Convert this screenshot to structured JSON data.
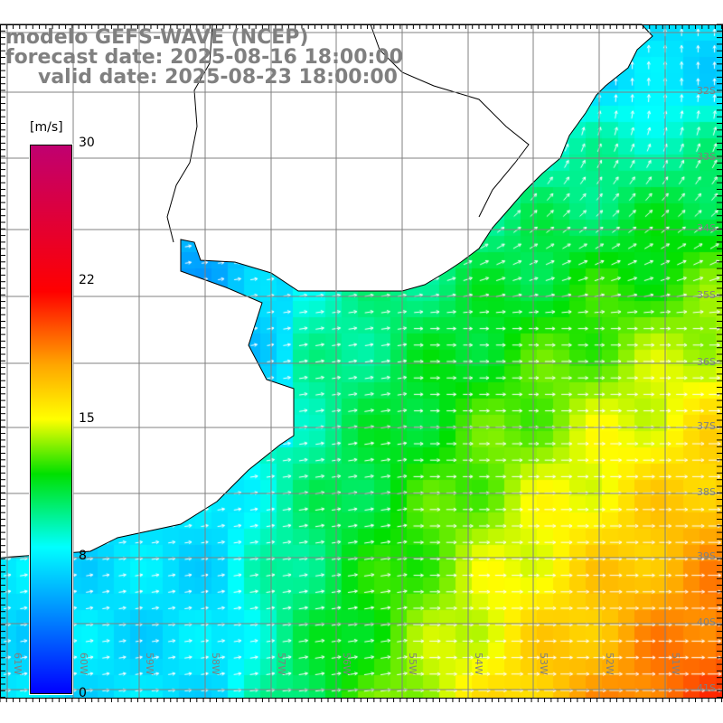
{
  "title": {
    "model": "modelo GEFS-WAVE (NCEP)",
    "forecast": "forecast date: 2025-08-16 18:00:00",
    "valid": "valid date: 2025-08-23 18:00:00"
  },
  "colorbar": {
    "unit": "[m/s]",
    "labels": [
      "30",
      "22",
      "15",
      "8",
      "0"
    ],
    "range": [
      0,
      30
    ],
    "stops": [
      {
        "v": 0,
        "c": "#0000ff"
      },
      {
        "v": 4,
        "c": "#0080ff"
      },
      {
        "v": 8,
        "c": "#00ffff"
      },
      {
        "v": 12,
        "c": "#00e000"
      },
      {
        "v": 15,
        "c": "#ffff00"
      },
      {
        "v": 18,
        "c": "#ffa500"
      },
      {
        "v": 22,
        "c": "#ff0000"
      },
      {
        "v": 30,
        "c": "#c00070"
      }
    ]
  },
  "grid": {
    "lat_labels": [
      "32S",
      "33S",
      "34S",
      "35S",
      "36S",
      "37S",
      "38S",
      "39S",
      "40S",
      "41S"
    ],
    "lon_labels": [
      "61W",
      "60W",
      "59W",
      "58W",
      "57W",
      "56W",
      "55W",
      "54W",
      "53W",
      "52W",
      "51W"
    ]
  }
}
